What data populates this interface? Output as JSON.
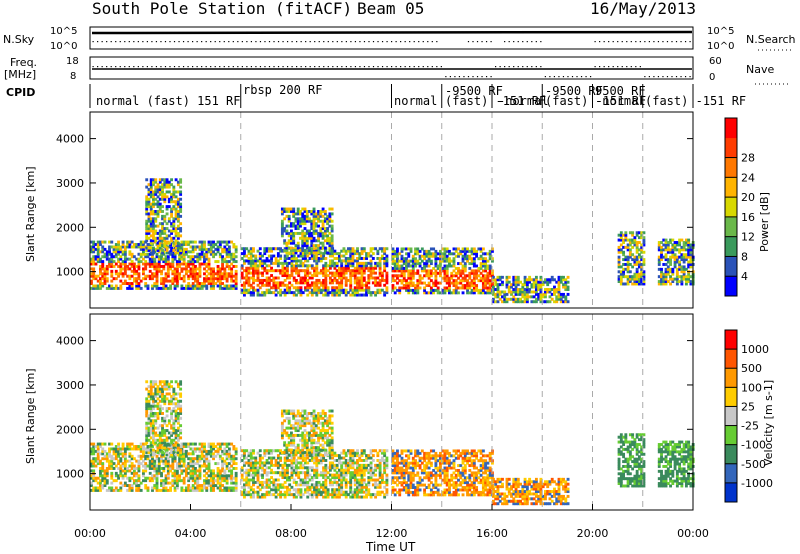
{
  "header": {
    "title": "South Pole Station (fitACF)",
    "beam": "Beam 05",
    "date": "16/May/2013"
  },
  "top_panels": {
    "nsky_label": "N.Sky",
    "nsky_ticks": [
      "10^5",
      "10^0"
    ],
    "nsearch_label": "N.Search",
    "nsearch_ticks": [
      "10^5",
      "10^0"
    ],
    "freq_label": "Freq.",
    "freq_unit": "[MHz]",
    "freq_ticks": [
      "18",
      "8"
    ],
    "nave_label": "Nave",
    "nave_ticks": [
      "60",
      "0"
    ],
    "cpid_label": "CPID"
  },
  "cpid_segments": [
    {
      "label": "normal (fast) 151 RF",
      "start": 0,
      "end": 6
    },
    {
      "label": "rbsp 200 RF",
      "start": 6,
      "end": 12
    },
    {
      "label": "normal",
      "start": 12,
      "end": 14
    },
    {
      "label": "-9500 RF",
      "start": 14,
      "end": 16
    },
    {
      "label": "(fast) -151 RF",
      "start": 14,
      "end": 16
    },
    {
      "label": "-normal",
      "start": 16,
      "end": 18
    },
    {
      "label": "-9500 RF",
      "start": 18,
      "end": 20
    },
    {
      "label": "(fast) -151 RF",
      "start": 18,
      "end": 20
    },
    {
      "label": "9500 RF",
      "start": 20,
      "end": 22
    },
    {
      "label": "-normal",
      "start": 20,
      "end": 22
    },
    {
      "label": "(fast) -151 RF",
      "start": 22,
      "end": 24
    }
  ],
  "chart_data": [
    {
      "type": "heatmap",
      "title": "",
      "ylabel": "Slant Range [km]",
      "xlabel": "",
      "y_ticks": [
        1000,
        2000,
        3000,
        4000
      ],
      "ylim": [
        180,
        4600
      ],
      "colorbar": {
        "label": "Power [dB]",
        "ticks": [
          "4",
          "8",
          "12",
          "16",
          "20",
          "24",
          "28"
        ],
        "colors": [
          "#0000ff",
          "#2a52b8",
          "#3a9a5c",
          "#6ab84a",
          "#d8d800",
          "#ffb400",
          "#ff7800",
          "#ff3c00",
          "#ff0000"
        ]
      }
    },
    {
      "type": "heatmap",
      "title": "",
      "ylabel": "Slant Range [km]",
      "xlabel": "Time UT",
      "x_ticks": [
        "00:00",
        "04:00",
        "08:00",
        "12:00",
        "16:00",
        "20:00",
        "00:00"
      ],
      "y_ticks": [
        1000,
        2000,
        3000,
        4000
      ],
      "ylim": [
        180,
        4600
      ],
      "colorbar": {
        "label": "Velocity [m s-1]",
        "ticks": [
          "1000",
          "500",
          "100",
          "25",
          "-25",
          "-100",
          "-500",
          "-1000"
        ],
        "colors": [
          "#0033cc",
          "#3366bb",
          "#3a8a5c",
          "#66cc33",
          "#c8c8c8",
          "#ffcc00",
          "#ff9900",
          "#ff5500",
          "#ff0000"
        ]
      }
    }
  ]
}
